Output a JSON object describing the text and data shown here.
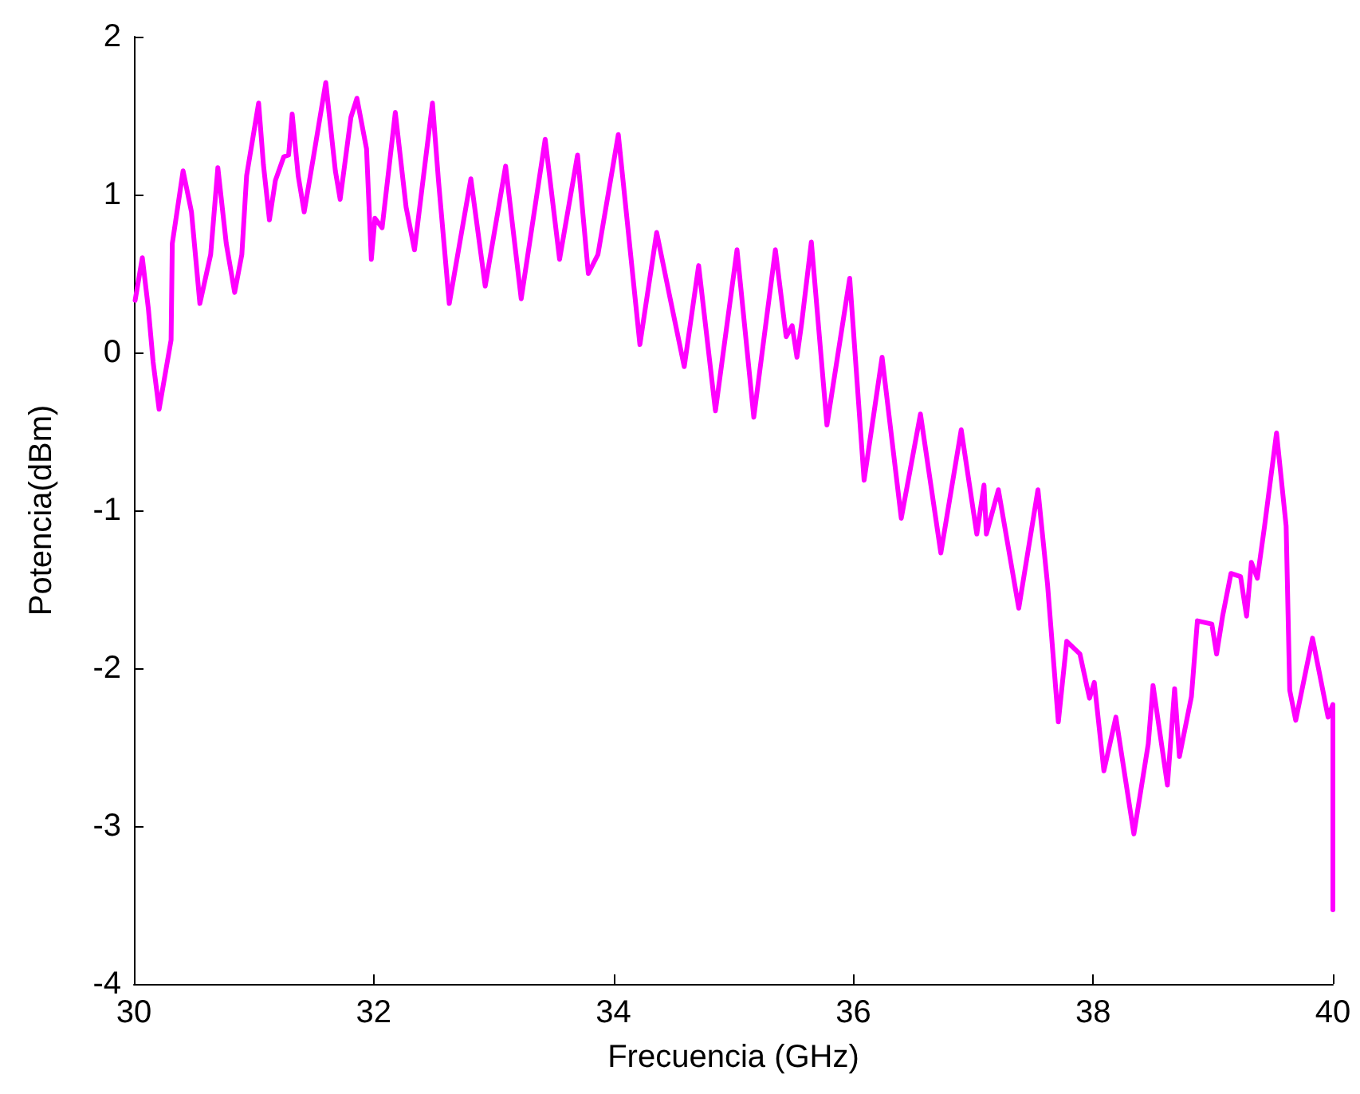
{
  "chart_data": {
    "type": "line",
    "xlabel": "Frecuencia (GHz)",
    "ylabel": "Potencia(dBm)",
    "xlim": [
      30,
      40
    ],
    "xticks": [
      30,
      32,
      34,
      36,
      38,
      40
    ],
    "ylim": [
      -4,
      2
    ],
    "yticks": [
      -4,
      -3,
      -2,
      -1,
      0,
      1,
      2
    ],
    "grid": false,
    "marker": "none",
    "line_style": "solid",
    "series": [
      {
        "color": "#ff00ff",
        "x": [
          30.01,
          30.07,
          30.12,
          30.16,
          30.21,
          30.31,
          30.32,
          30.41,
          30.48,
          30.55,
          30.64,
          30.7,
          30.77,
          30.84,
          30.9,
          30.94,
          31.04,
          31.08,
          31.13,
          31.18,
          31.25,
          31.29,
          31.32,
          31.37,
          31.42,
          31.5,
          31.6,
          31.68,
          31.72,
          31.81,
          31.86,
          31.94,
          31.98,
          32.01,
          32.07,
          32.18,
          32.27,
          32.34,
          32.49,
          32.54,
          32.63,
          32.81,
          32.93,
          33.1,
          33.23,
          33.43,
          33.55,
          33.7,
          33.79,
          33.87,
          34.04,
          34.22,
          34.36,
          34.47,
          34.59,
          34.71,
          34.85,
          35.03,
          35.17,
          35.35,
          35.44,
          35.49,
          35.53,
          35.57,
          35.65,
          35.78,
          35.97,
          36.09,
          36.24,
          36.4,
          36.56,
          36.73,
          36.9,
          37.03,
          37.09,
          37.11,
          37.21,
          37.38,
          37.54,
          37.62,
          37.71,
          37.78,
          37.89,
          37.97,
          38.01,
          38.09,
          38.19,
          38.34,
          38.46,
          38.5,
          38.62,
          38.68,
          38.72,
          38.82,
          38.87,
          38.99,
          39.03,
          39.08,
          39.15,
          39.23,
          39.28,
          39.32,
          39.37,
          39.43,
          39.53,
          39.61,
          39.64,
          39.69,
          39.83,
          39.89,
          39.96,
          40.0,
          40.0
        ],
        "values": [
          0.33,
          0.6,
          0.28,
          -0.06,
          -0.36,
          0.08,
          0.69,
          1.15,
          0.89,
          0.31,
          0.62,
          1.17,
          0.69,
          0.38,
          0.62,
          1.12,
          1.58,
          1.19,
          0.84,
          1.09,
          1.24,
          1.25,
          1.51,
          1.12,
          0.89,
          1.25,
          1.71,
          1.15,
          0.97,
          1.49,
          1.61,
          1.29,
          0.59,
          0.85,
          0.79,
          1.52,
          0.92,
          0.65,
          1.58,
          1.09,
          0.31,
          1.1,
          0.42,
          1.18,
          0.34,
          1.35,
          0.59,
          1.25,
          0.5,
          0.62,
          1.38,
          0.05,
          0.76,
          0.35,
          -0.09,
          0.55,
          -0.37,
          0.65,
          -0.41,
          0.65,
          0.1,
          0.17,
          -0.03,
          0.19,
          0.7,
          -0.46,
          0.47,
          -0.81,
          -0.03,
          -1.05,
          -0.39,
          -1.27,
          -0.49,
          -1.15,
          -0.84,
          -1.15,
          -0.87,
          -1.62,
          -0.87,
          -1.47,
          -2.34,
          -1.83,
          -1.91,
          -2.19,
          -2.09,
          -2.65,
          -2.31,
          -3.05,
          -2.48,
          -2.11,
          -2.74,
          -2.13,
          -2.56,
          -2.18,
          -1.7,
          -1.72,
          -1.91,
          -1.67,
          -1.4,
          -1.42,
          -1.67,
          -1.33,
          -1.43,
          -1.1,
          -0.51,
          -1.1,
          -2.14,
          -2.33,
          -1.81,
          -2.04,
          -2.31,
          -2.23,
          -3.53
        ]
      }
    ]
  }
}
